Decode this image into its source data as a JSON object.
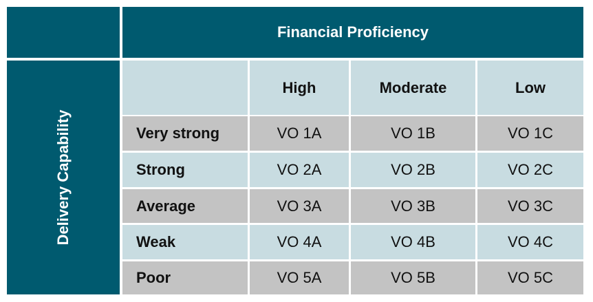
{
  "table": {
    "column_group": "Financial Proficiency",
    "row_group": "Delivery Capability",
    "columns": [
      "High",
      "Moderate",
      "Low"
    ],
    "rows": [
      {
        "label": "Very strong",
        "cells": [
          "VO 1A",
          "VO 1B",
          "VO 1C"
        ]
      },
      {
        "label": "Strong",
        "cells": [
          "VO 2A",
          "VO 2B",
          "VO 2C"
        ]
      },
      {
        "label": "Average",
        "cells": [
          "VO 3A",
          "VO 3B",
          "VO 3C"
        ]
      },
      {
        "label": "Weak",
        "cells": [
          "VO 4A",
          "VO 4B",
          "VO 4C"
        ]
      },
      {
        "label": "Poor",
        "cells": [
          "VO 5A",
          "VO 5B",
          "VO 5C"
        ]
      }
    ]
  },
  "colors": {
    "header": "#005a6f",
    "light_row": "#c8dce1",
    "gray_row": "#c3c3c3"
  }
}
